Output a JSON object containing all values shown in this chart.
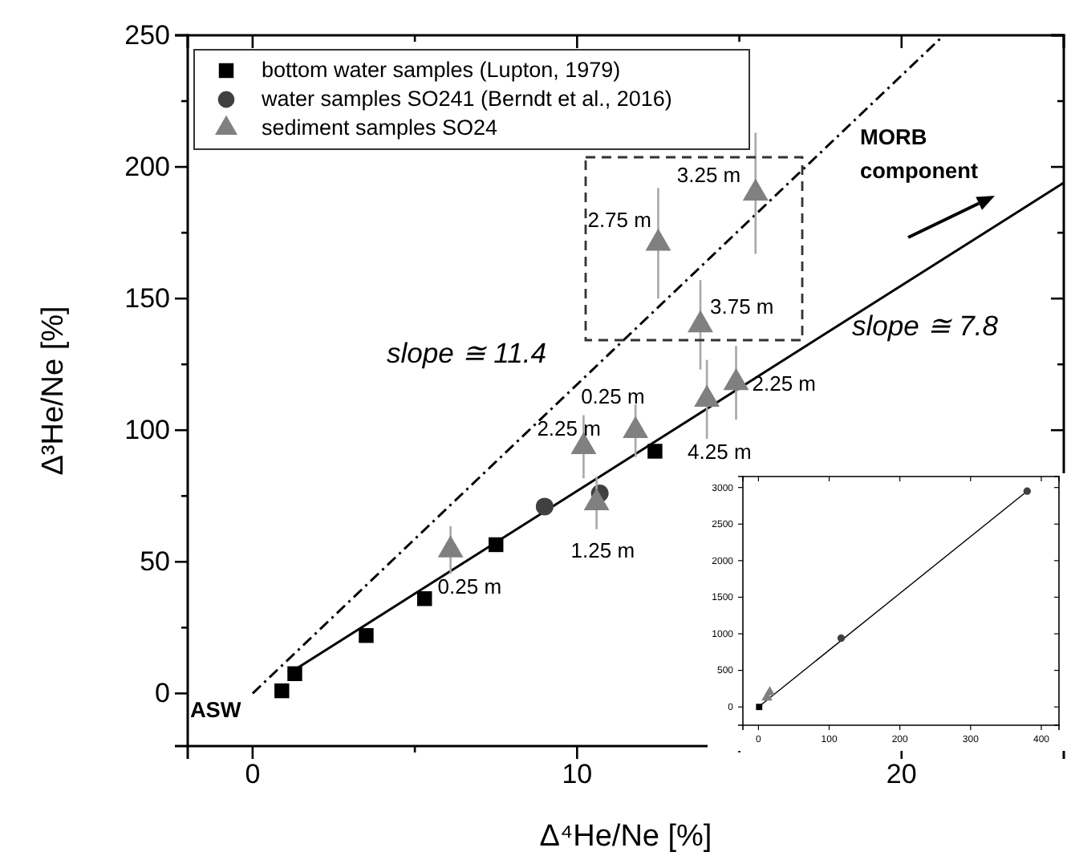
{
  "chart_data": [
    {
      "type": "scatter",
      "xlabel": "Δ⁴He/Ne [%]",
      "ylabel": "Δ³He/Ne [%]",
      "xlim": [
        -2,
        25
      ],
      "ylim": [
        -20,
        250
      ],
      "xticks": [
        0,
        {
          "value": 5,
          "label": null
        },
        10,
        {
          "value": 15,
          "label": null
        },
        20
      ],
      "yticks": [
        0,
        {
          "value": 25,
          "label": null
        },
        50,
        {
          "value": 75,
          "label": null
        },
        100,
        {
          "value": 125,
          "label": null
        },
        150,
        {
          "value": 175,
          "label": null
        },
        200,
        {
          "value": 225,
          "label": null
        },
        250
      ],
      "legend": "top left",
      "series": [
        {
          "name": "bottom water samples (Lupton, 1979)",
          "color": "#000000",
          "marker": "square",
          "x": [
            0.9,
            1.3,
            3.5,
            5.3,
            7.5,
            12.4
          ],
          "values": [
            1,
            7.5,
            22,
            36,
            56.5,
            92
          ]
        },
        {
          "name": "water samples SO241 (Berndt et al., 2016)",
          "color": "#404040",
          "marker": "circle",
          "x": [
            9.0,
            10.7
          ],
          "values": [
            71,
            76
          ]
        },
        {
          "name": "sediment samples SO24",
          "color": "#808080",
          "marker": "triangle",
          "x": [
            6.1,
            10.2,
            10.6,
            11.8,
            12.5,
            15.5,
            13.8,
            14.0,
            14.9
          ],
          "values": [
            54.5,
            93.7,
            72.4,
            99.8,
            171,
            190,
            140,
            111.7,
            118
          ],
          "errors": [
            9,
            12,
            10,
            10,
            21,
            23,
            17,
            15,
            14
          ]
        },
        {
          "type": "line",
          "color": "#000000",
          "line_style": "solid",
          "x": [
            1.3,
            25
          ],
          "values": [
            9,
            194
          ]
        },
        {
          "type": "line",
          "color": "#000000",
          "line_style": "dashed",
          "x": [
            0,
            21.3
          ],
          "values": [
            0,
            250
          ]
        }
      ],
      "annotations": [
        {
          "text": "ASW",
          "x": 0,
          "y": 0
        },
        "MORB component",
        "slope ≅ 11.4",
        "slope ≅ 7.8",
        {
          "text": "0.25 m",
          "x": 6.1,
          "y": 54.5
        },
        {
          "text": "2.25 m",
          "x": 10.2,
          "y": 93.7
        },
        {
          "text": "1.25 m",
          "x": 10.6,
          "y": 72.4
        },
        {
          "text": "0.25 m",
          "x": 11.8,
          "y": 99.8
        },
        {
          "text": "2.75 m",
          "x": 12.5,
          "y": 171
        },
        {
          "text": "3.25 m",
          "x": 15.5,
          "y": 190
        },
        {
          "text": "3.75 m",
          "x": 13.8,
          "y": 140
        },
        {
          "text": "4.25 m",
          "x": 14.0,
          "y": 111.7
        },
        {
          "text": "2.25 m",
          "x": 14.9,
          "y": 118
        }
      ]
    },
    {
      "type": "scatter",
      "xlim": [
        -22,
        425
      ],
      "ylim": [
        -250,
        3150
      ],
      "xticks": [
        0,
        100,
        200,
        300,
        400
      ],
      "yticks": [
        0,
        500,
        1000,
        1500,
        2000,
        2500,
        3000
      ],
      "series": [
        {
          "color": "#000000",
          "marker": "square",
          "x": [
            1
          ],
          "values": [
            0
          ]
        },
        {
          "color": "#404040",
          "marker": "circle",
          "x": [
            117,
            380
          ],
          "values": [
            940,
            2950
          ]
        },
        {
          "color": "#808080",
          "marker": "triangle",
          "x": [
            12,
            16
          ],
          "values": [
            130,
            200
          ]
        },
        {
          "type": "line",
          "color": "#000000",
          "line_style": "solid",
          "x": [
            0,
            380
          ],
          "values": [
            0,
            2950
          ]
        }
      ]
    }
  ]
}
